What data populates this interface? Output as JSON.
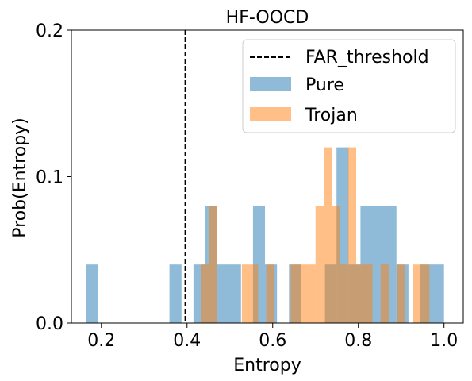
{
  "chart_data": {
    "type": "histogram",
    "title": "HF-OOCD",
    "xlabel": "Entropy",
    "ylabel": "Prob(Entropy)",
    "xlim": [
      0.13,
      1.045
    ],
    "ylim": [
      0,
      0.2
    ],
    "xticks": [
      {
        "value": 0.2,
        "label": "0.2"
      },
      {
        "value": 0.4,
        "label": "0.4"
      },
      {
        "value": 0.6,
        "label": "0.6"
      },
      {
        "value": 0.8,
        "label": "0.8"
      },
      {
        "value": 1.0,
        "label": "1.0"
      }
    ],
    "yticks": [
      {
        "value": 0.0,
        "label": "0.0"
      },
      {
        "value": 0.1,
        "label": "0.1"
      },
      {
        "value": 0.2,
        "label": "0.2"
      }
    ],
    "grid": false,
    "legend_position": "top-right",
    "threshold": {
      "name": "FAR_threshold",
      "x": 0.396,
      "style": "dashed",
      "color": "#000000"
    },
    "series": [
      {
        "name": "Pure",
        "color": "#1f77b4",
        "alpha": 0.5,
        "bins": [
          {
            "x0": 0.165,
            "x1": 0.193,
            "p": 0.04
          },
          {
            "x0": 0.359,
            "x1": 0.387,
            "p": 0.04
          },
          {
            "x0": 0.415,
            "x1": 0.443,
            "p": 0.04
          },
          {
            "x0": 0.443,
            "x1": 0.47,
            "p": 0.08
          },
          {
            "x0": 0.47,
            "x1": 0.526,
            "p": 0.04
          },
          {
            "x0": 0.554,
            "x1": 0.582,
            "p": 0.08
          },
          {
            "x0": 0.582,
            "x1": 0.61,
            "p": 0.04
          },
          {
            "x0": 0.638,
            "x1": 0.666,
            "p": 0.04
          },
          {
            "x0": 0.722,
            "x1": 0.749,
            "p": 0.04
          },
          {
            "x0": 0.749,
            "x1": 0.777,
            "p": 0.12
          },
          {
            "x0": 0.777,
            "x1": 0.805,
            "p": 0.04
          },
          {
            "x0": 0.805,
            "x1": 0.889,
            "p": 0.08
          },
          {
            "x0": 0.889,
            "x1": 0.917,
            "p": 0.04
          },
          {
            "x0": 0.945,
            "x1": 1.0,
            "p": 0.04
          }
        ]
      },
      {
        "name": "Trojan",
        "color": "#ff7f0e",
        "alpha": 0.5,
        "bins": [
          {
            "x0": 0.432,
            "x1": 0.451,
            "p": 0.04
          },
          {
            "x0": 0.451,
            "x1": 0.47,
            "p": 0.08
          },
          {
            "x0": 0.528,
            "x1": 0.566,
            "p": 0.04
          },
          {
            "x0": 0.585,
            "x1": 0.604,
            "p": 0.04
          },
          {
            "x0": 0.642,
            "x1": 0.662,
            "p": 0.04
          },
          {
            "x0": 0.662,
            "x1": 0.7,
            "p": 0.04
          },
          {
            "x0": 0.7,
            "x1": 0.719,
            "p": 0.08
          },
          {
            "x0": 0.719,
            "x1": 0.738,
            "p": 0.12
          },
          {
            "x0": 0.738,
            "x1": 0.757,
            "p": 0.08
          },
          {
            "x0": 0.757,
            "x1": 0.776,
            "p": 0.04
          },
          {
            "x0": 0.776,
            "x1": 0.795,
            "p": 0.12
          },
          {
            "x0": 0.795,
            "x1": 0.833,
            "p": 0.04
          },
          {
            "x0": 0.852,
            "x1": 0.871,
            "p": 0.04
          },
          {
            "x0": 0.89,
            "x1": 0.909,
            "p": 0.04
          },
          {
            "x0": 0.928,
            "x1": 0.966,
            "p": 0.04
          }
        ]
      }
    ]
  }
}
